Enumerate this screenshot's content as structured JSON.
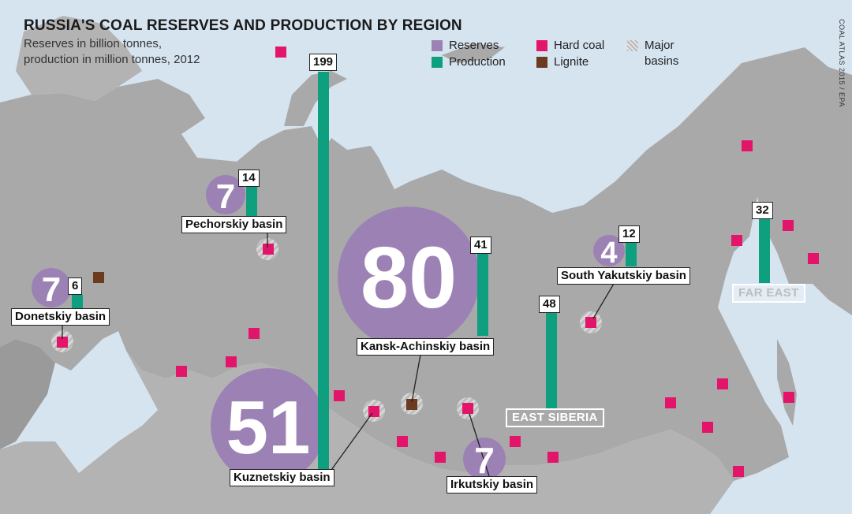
{
  "title": "RUSSIA'S COAL RESERVES AND PRODUCTION BY REGION",
  "subtitle_line1": "Reserves in billion tonnes,",
  "subtitle_line2": "production in million tonnes, 2012",
  "credit": "COAL ATLAS 2015 / EPA",
  "legend": {
    "reserves": "Reserves",
    "production": "Production",
    "hard_coal": "Hard coal",
    "lignite": "Lignite",
    "major_basins_line1": "Major",
    "major_basins_line2": "basins"
  },
  "colors": {
    "reserves": "#9c82b4",
    "production": "#0e9f7e",
    "hard_coal": "#e2156b",
    "lignite": "#6b3a1f",
    "land": "#a7a7a7",
    "water": "#d6e4f0"
  },
  "regions": {
    "far_east": "FAR EAST",
    "east_siberia": "EAST SIBERIA"
  },
  "basins": [
    {
      "name": "Donetskiy basin",
      "reserves": "7",
      "production": "6"
    },
    {
      "name": "Pechorskiy basin",
      "reserves": "7",
      "production": "14"
    },
    {
      "name": "Kuznetskiy basin",
      "reserves": "51",
      "production": "199"
    },
    {
      "name": "Kansk-Achinskiy basin",
      "reserves": "80",
      "production": "41"
    },
    {
      "name": "Irkutskiy basin",
      "reserves": "7",
      "production": ""
    },
    {
      "name": "South Yakutskiy basin",
      "reserves": "4",
      "production": "12"
    }
  ],
  "regional_production": {
    "east_siberia": "48",
    "far_east": "32"
  }
}
